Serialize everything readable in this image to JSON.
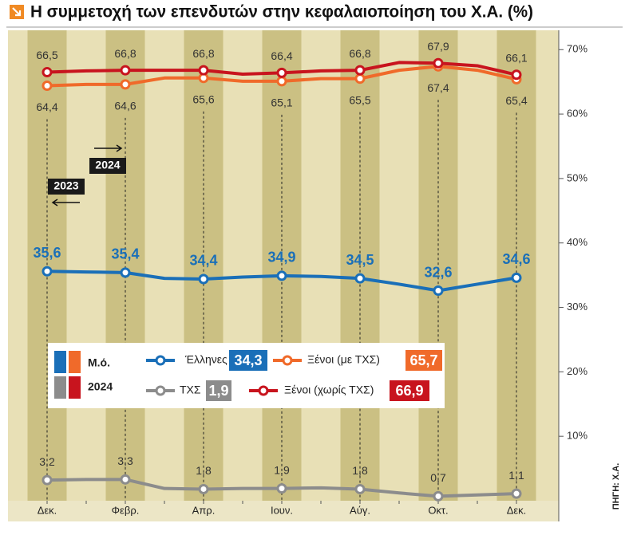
{
  "chart_data": {
    "type": "line",
    "title": "Η συμμετοχή των επενδυτών στην κεφαλαιοποίηση του Χ.Α. (%)",
    "source": "ΠΗΓΗ: Χ.Α.",
    "legend_headers": [
      "Μ.ό.",
      "2024"
    ],
    "year_annotations": [
      "2024",
      "2023"
    ],
    "categories": [
      "Δεκ.",
      null,
      "Φεβρ.",
      null,
      "Απρ.",
      null,
      "Ιουν.",
      null,
      "Αύγ.",
      null,
      "Οκτ.",
      null,
      "Δεκ."
    ],
    "ylim": [
      0,
      73
    ],
    "yticks": [
      {
        "value": 10,
        "label": "10%"
      },
      {
        "value": 20,
        "label": "20%"
      },
      {
        "value": 30,
        "label": "30%"
      },
      {
        "value": 40,
        "label": "40%"
      },
      {
        "value": 50,
        "label": "50%"
      },
      {
        "value": 60,
        "label": "60%"
      },
      {
        "value": 70,
        "label": "70%"
      }
    ],
    "series": [
      {
        "name": "Έλληνες",
        "color": "#1a6fb8",
        "average": 34.3,
        "average_label": "34,3",
        "values": [
          35.6,
          35.5,
          35.4,
          34.5,
          34.4,
          34.7,
          34.9,
          34.8,
          34.5,
          33.6,
          32.6,
          33.6,
          34.6
        ],
        "value_labels": [
          "35,6",
          null,
          "35,4",
          null,
          "34,4",
          null,
          "34,9",
          null,
          "34,5",
          null,
          "32,6",
          null,
          "34,6"
        ]
      },
      {
        "name": "Ξένοι (με ΤΧΣ)",
        "color": "#f06a2a",
        "average": 65.7,
        "average_label": "65,7",
        "values": [
          64.4,
          64.6,
          64.6,
          65.6,
          65.6,
          65.1,
          65.1,
          65.5,
          65.5,
          66.8,
          67.4,
          66.8,
          65.4
        ],
        "value_labels": [
          "64,4",
          null,
          "64,6",
          null,
          "65,6",
          null,
          "65,1",
          null,
          "65,5",
          null,
          "67,4",
          null,
          "65,4"
        ]
      },
      {
        "name": "ΤΧΣ",
        "color": "#8c8c8c",
        "average": 1.9,
        "average_label": "1,9",
        "values": [
          3.2,
          3.3,
          3.3,
          1.9,
          1.8,
          1.9,
          1.9,
          2.0,
          1.8,
          1.2,
          0.7,
          0.9,
          1.1
        ],
        "value_labels": [
          "3,2",
          null,
          "3,3",
          null,
          "1,8",
          null,
          "1,9",
          null,
          "1,8",
          null,
          "0,7",
          null,
          "1,1"
        ]
      },
      {
        "name": "Ξένοι (χωρίς ΤΧΣ)",
        "color": "#c8141e",
        "average": 66.9,
        "average_label": "66,9",
        "values": [
          66.5,
          66.7,
          66.8,
          66.8,
          66.8,
          66.2,
          66.4,
          66.7,
          66.8,
          68.0,
          67.9,
          67.5,
          66.1
        ],
        "value_labels": [
          "66,5",
          null,
          "66,8",
          null,
          "66,8",
          null,
          "66,4",
          null,
          "66,8",
          null,
          "67,9",
          null,
          "66,1"
        ]
      }
    ]
  }
}
